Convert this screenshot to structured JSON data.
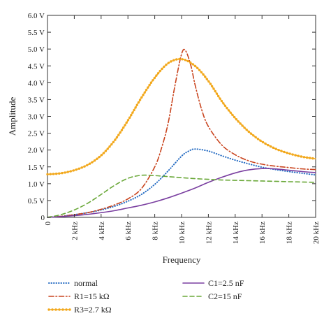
{
  "chart_data": {
    "type": "line",
    "title": "",
    "xlabel": "Frequency",
    "ylabel": "Amplitude",
    "xlim": [
      0,
      20
    ],
    "ylim": [
      0,
      6
    ],
    "x_ticks": [
      0,
      2,
      4,
      6,
      8,
      10,
      12,
      14,
      16,
      18,
      20
    ],
    "x_tick_labels": [
      "0",
      "2 kHz",
      "4 kHz",
      "6 kHz",
      "8 kHz",
      "10 kHz",
      "12 kHz",
      "14 kHz",
      "16 kHz",
      "18 kHz",
      "20 kHz"
    ],
    "y_ticks": [
      0,
      0.5,
      1,
      1.5,
      2,
      2.5,
      3,
      3.5,
      4,
      4.5,
      5,
      5.5,
      6
    ],
    "y_tick_labels": [
      "0",
      "0.5 V",
      "1.0 V",
      "1.5 V",
      "2.0 V",
      "2.5 V",
      "3.0 V",
      "3.5 V",
      "4.0 V",
      "4.5 V",
      "5.0 V",
      "5.5 V",
      "6.0 V"
    ],
    "grid": false,
    "legend_position": "bottom",
    "series": [
      {
        "name": "normal",
        "color": "#2a6fc4",
        "style": "dotted",
        "x": [
          0,
          1,
          2,
          3,
          4,
          5,
          6,
          7,
          8,
          9,
          10,
          10.5,
          11,
          12,
          13,
          14,
          15,
          16,
          17,
          18,
          19,
          20
        ],
        "y": [
          0,
          0.03,
          0.08,
          0.14,
          0.22,
          0.33,
          0.48,
          0.68,
          0.98,
          1.38,
          1.82,
          1.96,
          2.03,
          1.97,
          1.83,
          1.7,
          1.59,
          1.49,
          1.42,
          1.36,
          1.31,
          1.26
        ]
      },
      {
        "name": "R1=15 kΩ",
        "color": "#c9441e",
        "style": "dashdot",
        "x": [
          0,
          1,
          2,
          3,
          4,
          5,
          6,
          7,
          8,
          8.5,
          9,
          9.5,
          10,
          10.3,
          10.7,
          11,
          11.5,
          12,
          13,
          14,
          15,
          16,
          17,
          18,
          19,
          20
        ],
        "y": [
          0,
          0.03,
          0.08,
          0.14,
          0.24,
          0.37,
          0.55,
          0.85,
          1.5,
          2.05,
          2.8,
          3.9,
          4.85,
          4.95,
          4.5,
          3.95,
          3.2,
          2.7,
          2.15,
          1.86,
          1.68,
          1.58,
          1.52,
          1.48,
          1.44,
          1.42
        ]
      },
      {
        "name": "R3=2.7 kΩ",
        "color": "#f2a81c",
        "style": "solid-markers",
        "x": [
          0,
          1,
          2,
          3,
          4,
          5,
          6,
          7,
          8,
          9,
          10,
          11,
          12,
          13,
          14,
          15,
          16,
          17,
          18,
          19,
          20
        ],
        "y": [
          1.28,
          1.31,
          1.4,
          1.56,
          1.84,
          2.28,
          2.88,
          3.55,
          4.15,
          4.58,
          4.7,
          4.5,
          4.05,
          3.45,
          2.95,
          2.55,
          2.25,
          2.04,
          1.9,
          1.8,
          1.74
        ]
      },
      {
        "name": "C1=2.5 nF",
        "color": "#7a3fa0",
        "style": "solid",
        "x": [
          0,
          1,
          2,
          3,
          4,
          5,
          6,
          7,
          8,
          9,
          10,
          11,
          12,
          13,
          14,
          15,
          16,
          17,
          18,
          19,
          20
        ],
        "y": [
          0,
          0.02,
          0.05,
          0.09,
          0.14,
          0.2,
          0.28,
          0.36,
          0.46,
          0.58,
          0.72,
          0.87,
          1.04,
          1.19,
          1.32,
          1.41,
          1.45,
          1.44,
          1.4,
          1.36,
          1.33
        ]
      },
      {
        "name": "C2=15 nF",
        "color": "#6aa839",
        "style": "dashed",
        "x": [
          0,
          1,
          2,
          3,
          4,
          5,
          6,
          7,
          8,
          9,
          10,
          11,
          12,
          13,
          14,
          15,
          16,
          17,
          18,
          19,
          20
        ],
        "y": [
          0,
          0.08,
          0.22,
          0.42,
          0.68,
          0.95,
          1.16,
          1.25,
          1.24,
          1.21,
          1.18,
          1.15,
          1.13,
          1.11,
          1.1,
          1.09,
          1.08,
          1.07,
          1.06,
          1.05,
          1.04
        ]
      }
    ]
  }
}
